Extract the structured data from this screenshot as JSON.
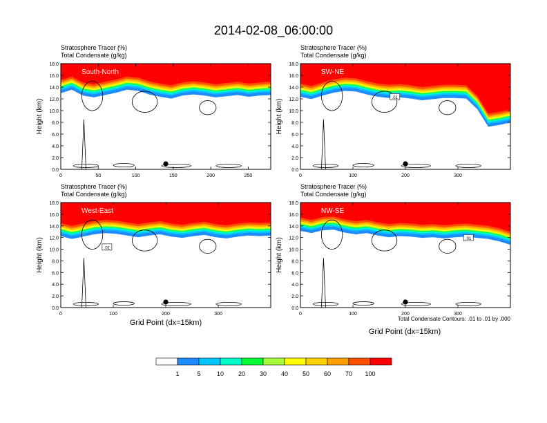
{
  "figure": {
    "title": "2014-02-08_06:00:00",
    "contour_note": "Total Condensate Contours: .01 to .01 by .000",
    "x_axis_label": "Grid Point (dx=15km)"
  },
  "colorbar": {
    "colors": [
      "#ffffff",
      "#1e8cff",
      "#00c8ff",
      "#00ffc8",
      "#00ff32",
      "#aaff3c",
      "#ffff00",
      "#ffd200",
      "#ffa000",
      "#ff5000",
      "#ff0000"
    ],
    "labels": [
      "1",
      "5",
      "10",
      "20",
      "30",
      "40",
      "50",
      "60",
      "70",
      "100"
    ]
  },
  "chart_data": [
    {
      "type": "heatmap",
      "subtitle_1": "Stratosphere Tracer   (%)",
      "subtitle_2": "Total Condensate   (g/kg)",
      "label": "South-North",
      "ylabel": "Height (km)",
      "y_ticks": [
        "0.0",
        "2.0",
        "4.0",
        "6.0",
        "8.0",
        "10.0",
        "12.0",
        "14.0",
        "16.0",
        "18.0"
      ],
      "x_ticks": [
        "0",
        "50",
        "100",
        "150",
        "200",
        "250"
      ],
      "x_tick_values": [
        0,
        50,
        100,
        150,
        200,
        250
      ],
      "xlim": [
        0,
        280
      ],
      "ylim": [
        0,
        18
      ],
      "tropopause_km": [
        15.2,
        15.8,
        14.8,
        14.5,
        14.9,
        15.3,
        15.8,
        15.6,
        15.0,
        14.6,
        14.3,
        14.8,
        15.0,
        14.8,
        14.5,
        14.7,
        14.9,
        14.6,
        14.8,
        14.9
      ],
      "marker_x": 140,
      "contour_label": ""
    },
    {
      "type": "heatmap",
      "subtitle_1": "Stratosphere Tracer   (%)",
      "subtitle_2": "Total Condensate   (g/kg)",
      "label": "SW-NE",
      "ylabel": "Height (km)",
      "y_ticks": [
        "0.0",
        "2.0",
        "4.0",
        "6.0",
        "8.0",
        "10.0",
        "12.0",
        "14.0",
        "16.0",
        "18.0"
      ],
      "x_ticks": [
        "0",
        "100",
        "200",
        "300"
      ],
      "x_tick_values": [
        0,
        100,
        200,
        300
      ],
      "xlim": [
        0,
        400
      ],
      "ylim": [
        0,
        18
      ],
      "tropopause_km": [
        14.6,
        14.2,
        14.8,
        15.3,
        15.6,
        15.5,
        15.0,
        14.6,
        14.4,
        14.5,
        14.3,
        14.0,
        14.2,
        14.4,
        14.4,
        14.3,
        12.5,
        9.5,
        9.8,
        10.2
      ],
      "marker_x": 200,
      "contour_label": ".01"
    },
    {
      "type": "heatmap",
      "subtitle_1": "Stratosphere Tracer   (%)",
      "subtitle_2": "Total Condensate   (g/kg)",
      "label": "West-East",
      "ylabel": "Height (km)",
      "y_ticks": [
        "0.0",
        "2.0",
        "4.0",
        "6.0",
        "8.0",
        "10.0",
        "12.0",
        "14.0",
        "16.0",
        "18.0"
      ],
      "x_ticks": [
        "0",
        "100",
        "200",
        "300"
      ],
      "x_tick_values": [
        0,
        100,
        200,
        300
      ],
      "xlim": [
        0,
        400
      ],
      "ylim": [
        0,
        18
      ],
      "tropopause_km": [
        14.5,
        14.0,
        14.4,
        14.8,
        15.0,
        14.9,
        14.6,
        14.3,
        14.6,
        14.8,
        14.4,
        14.2,
        14.5,
        14.7,
        14.3,
        14.1,
        14.4,
        14.6,
        14.5,
        14.6
      ],
      "marker_x": 200,
      "contour_label": ".01"
    },
    {
      "type": "heatmap",
      "subtitle_1": "Stratosphere Tracer   (%)",
      "subtitle_2": "Total Condensate   (g/kg)",
      "label": "NW-SE",
      "ylabel": "Height (km)",
      "y_ticks": [
        "0.0",
        "2.0",
        "4.0",
        "6.0",
        "8.0",
        "10.0",
        "12.0",
        "14.0",
        "16.0",
        "18.0"
      ],
      "x_ticks": [
        "0",
        "100",
        "200",
        "300"
      ],
      "x_tick_values": [
        0,
        100,
        200,
        300
      ],
      "xlim": [
        0,
        400
      ],
      "ylim": [
        0,
        18
      ],
      "tropopause_km": [
        15.4,
        15.0,
        15.5,
        15.6,
        15.1,
        14.8,
        15.0,
        14.6,
        14.3,
        14.5,
        14.4,
        14.2,
        14.3,
        14.1,
        14.3,
        14.4,
        14.2,
        14.0,
        13.6,
        13.0
      ],
      "marker_x": 200,
      "contour_label": ".01"
    }
  ]
}
